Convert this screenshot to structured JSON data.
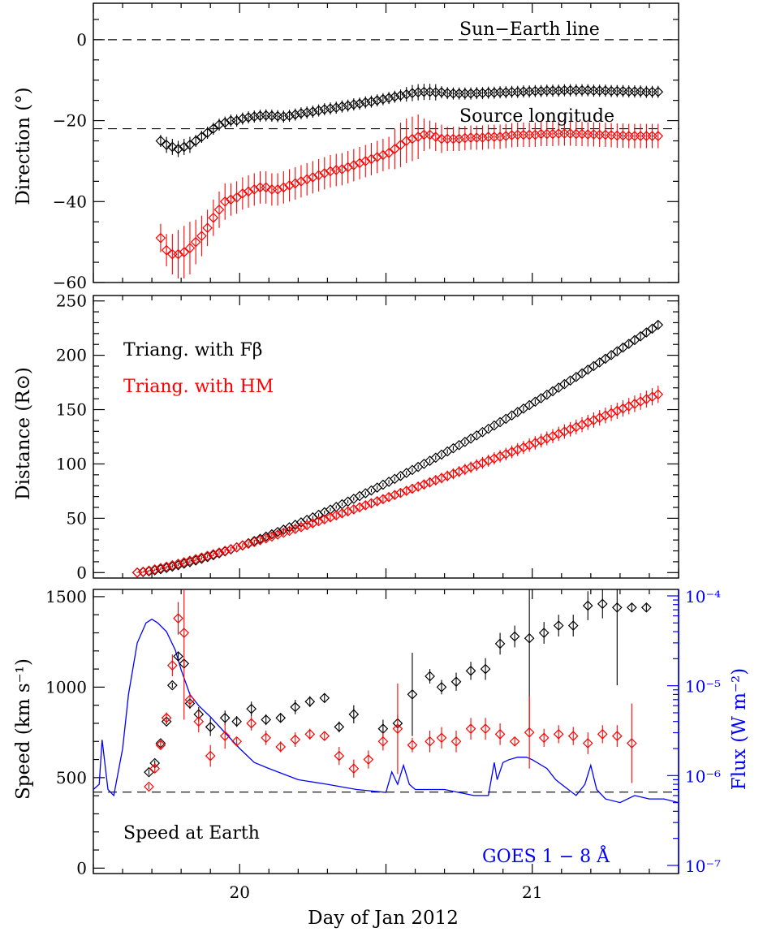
{
  "figure": {
    "x_axis_label": "Day of Jan 2012",
    "x_tick_labels": [
      "20",
      "21"
    ]
  },
  "chart_data": [
    {
      "type": "scatter",
      "panel": "direction",
      "ylabel": "Direction (°)",
      "ylim": [
        -60,
        9
      ],
      "y_ticks": [
        0,
        -20,
        -40,
        -60
      ],
      "xlim": [
        19.5,
        21.5
      ],
      "annotations": [
        "Sun−Earth line",
        "Source longitude"
      ],
      "reference_lines": [
        {
          "label": "Sun−Earth line",
          "y": 0
        },
        {
          "label": "Source longitude",
          "y": -22
        }
      ],
      "series": [
        {
          "color": "#000000",
          "x": [
            19.73,
            19.75,
            19.77,
            19.79,
            19.81,
            19.83,
            19.85,
            19.87,
            19.89,
            19.91,
            19.93,
            19.95,
            19.97,
            19.99,
            20.01,
            20.03,
            20.05,
            20.07,
            20.09,
            20.11,
            20.13,
            20.15,
            20.17,
            20.19,
            20.21,
            20.23,
            20.25,
            20.27,
            20.29,
            20.31,
            20.33,
            20.35,
            20.37,
            20.39,
            20.41,
            20.43,
            20.45,
            20.47,
            20.49,
            20.51,
            20.53,
            20.55,
            20.57,
            20.59,
            20.61,
            20.63,
            20.65,
            20.67,
            20.69,
            20.71,
            20.73,
            20.75,
            20.77,
            20.79,
            20.81,
            20.83,
            20.85,
            20.87,
            20.89,
            20.91,
            20.93,
            20.95,
            20.97,
            20.99,
            21.01,
            21.03,
            21.05,
            21.07,
            21.09,
            21.11,
            21.13,
            21.15,
            21.17,
            21.19,
            21.21,
            21.23,
            21.25,
            21.27,
            21.29,
            21.31,
            21.33,
            21.35,
            21.37,
            21.39,
            21.41,
            21.43
          ],
          "y": [
            -25,
            -26,
            -26.5,
            -27,
            -26.5,
            -26,
            -25,
            -24,
            -23,
            -22,
            -21,
            -20.5,
            -20,
            -20,
            -19.5,
            -19.2,
            -19,
            -18.8,
            -18.7,
            -18.8,
            -18.9,
            -19,
            -18.8,
            -18.5,
            -18.2,
            -18,
            -17.8,
            -17.5,
            -17.2,
            -17,
            -16.8,
            -16.5,
            -16.3,
            -16,
            -15.8,
            -15.5,
            -15.3,
            -15,
            -14.7,
            -14.4,
            -14.1,
            -13.8,
            -13.5,
            -13.2,
            -13,
            -12.9,
            -12.9,
            -13,
            -13,
            -13.2,
            -13.3,
            -13.3,
            -13.3,
            -13.3,
            -13.2,
            -13.2,
            -13.1,
            -13.1,
            -13,
            -13,
            -12.9,
            -12.9,
            -12.8,
            -12.8,
            -12.7,
            -12.7,
            -12.6,
            -12.6,
            -12.6,
            -12.5,
            -12.5,
            -12.5,
            -12.5,
            -12.5,
            -12.6,
            -12.6,
            -12.6,
            -12.7,
            -12.7,
            -12.7,
            -12.8,
            -12.8,
            -12.8,
            -12.9,
            -12.9,
            -12.9
          ],
          "err": [
            1.5,
            2,
            2,
            2,
            2,
            2,
            1.5,
            1.5,
            1.5,
            1.5,
            1.5,
            1.5,
            1.5,
            1.5,
            1.5,
            1.5,
            1.5,
            1.5,
            1.5,
            1.5,
            1.5,
            1.5,
            1.5,
            1.5,
            1.5,
            1.5,
            1.5,
            1.5,
            1.5,
            1.5,
            1.5,
            1.5,
            1.5,
            1.5,
            1.5,
            1.5,
            1.5,
            1.5,
            1.5,
            1.5,
            1.5,
            1.5,
            1.8,
            2,
            2,
            2,
            2,
            2,
            1.5,
            1.5,
            1.5,
            1.5,
            1.5,
            1.5,
            1.5,
            1.5,
            1.5,
            1.5,
            1.5,
            1.5,
            1.5,
            1.5,
            1.5,
            1.5,
            1.5,
            1.5,
            1.5,
            1.5,
            1.5,
            1.5,
            1.5,
            1.5,
            1.5,
            1.5,
            1.5,
            1.5,
            1.5,
            1.5,
            1.5,
            1.5,
            1.5,
            1.5,
            1.5,
            1.5,
            1.5,
            1.5
          ]
        },
        {
          "color": "#ff0000",
          "x": [
            19.73,
            19.75,
            19.77,
            19.79,
            19.81,
            19.83,
            19.85,
            19.87,
            19.89,
            19.91,
            19.93,
            19.95,
            19.97,
            19.99,
            20.01,
            20.03,
            20.05,
            20.07,
            20.09,
            20.11,
            20.13,
            20.15,
            20.17,
            20.19,
            20.21,
            20.23,
            20.25,
            20.27,
            20.29,
            20.31,
            20.33,
            20.35,
            20.37,
            20.39,
            20.41,
            20.43,
            20.45,
            20.47,
            20.49,
            20.51,
            20.53,
            20.55,
            20.57,
            20.59,
            20.61,
            20.63,
            20.65,
            20.67,
            20.69,
            20.71,
            20.73,
            20.75,
            20.77,
            20.79,
            20.81,
            20.83,
            20.85,
            20.87,
            20.89,
            20.91,
            20.93,
            20.95,
            20.97,
            20.99,
            21.01,
            21.03,
            21.05,
            21.07,
            21.09,
            21.11,
            21.13,
            21.15,
            21.17,
            21.19,
            21.21,
            21.23,
            21.25,
            21.27,
            21.29,
            21.31,
            21.33,
            21.35,
            21.37,
            21.39,
            21.41,
            21.43
          ],
          "y": [
            -49,
            -52,
            -53,
            -53,
            -52.5,
            -51.5,
            -50,
            -48.5,
            -46.5,
            -44,
            -42,
            -40,
            -39.5,
            -39,
            -38,
            -37.5,
            -37,
            -36.5,
            -36.5,
            -37,
            -37,
            -36.5,
            -36,
            -35.5,
            -35,
            -34.5,
            -34,
            -33.5,
            -33,
            -32.5,
            -32.2,
            -32,
            -31.5,
            -31,
            -30.5,
            -30,
            -29.5,
            -29,
            -28.5,
            -28,
            -27,
            -26,
            -25,
            -24.5,
            -24,
            -23.5,
            -23.5,
            -24,
            -24.5,
            -24.5,
            -24.5,
            -24.5,
            -24.3,
            -24.2,
            -24.2,
            -24.2,
            -24,
            -24,
            -24,
            -23.8,
            -23.6,
            -23.5,
            -23.5,
            -23.5,
            -23.5,
            -23.3,
            -23.3,
            -23.3,
            -23.2,
            -23.2,
            -23.2,
            -23.3,
            -23.3,
            -23.4,
            -23.4,
            -23.5,
            -23.5,
            -23.6,
            -23.7,
            -23.7,
            -23.8,
            -23.8,
            -23.8,
            -23.8,
            -23.8,
            -23.8
          ],
          "err": [
            3.5,
            4,
            5,
            6,
            6.5,
            6.5,
            5.5,
            5,
            4.5,
            4.5,
            4.5,
            4.5,
            4,
            4,
            4,
            4,
            4,
            4,
            4,
            4,
            4,
            4,
            4,
            4,
            4,
            4,
            4,
            4,
            4,
            4,
            4,
            4,
            4,
            4,
            4,
            4,
            4,
            4,
            4,
            4,
            5,
            5.5,
            5.5,
            5.5,
            5.5,
            4,
            3.5,
            3.5,
            3.5,
            3,
            3,
            3,
            3,
            3,
            3,
            3,
            3,
            3,
            3,
            3,
            3,
            3,
            3,
            3,
            3,
            3,
            3,
            3,
            3,
            3,
            3,
            3,
            3,
            3,
            3,
            3,
            3,
            3,
            3,
            3,
            3,
            3,
            3,
            3,
            3,
            3
          ]
        }
      ]
    },
    {
      "type": "scatter",
      "panel": "distance",
      "ylabel": "Distance (R⊙)",
      "ylim": [
        -5,
        255
      ],
      "y_ticks": [
        0,
        50,
        100,
        150,
        200,
        250
      ],
      "xlim": [
        19.5,
        21.5
      ],
      "legend": [
        "Triang. with Fβ",
        "Triang. with HM"
      ],
      "series": [
        {
          "name": "Triang. with Fβ",
          "color": "#000000",
          "x_start": 19.65,
          "x_step": 0.02,
          "n": 90,
          "y_start": 0,
          "y_end": 228,
          "shape_exponent": 1.38,
          "err_start": 0.5,
          "err_end": 3
        },
        {
          "name": "Triang. with HM",
          "color": "#ff0000",
          "x_start": 19.65,
          "x_step": 0.02,
          "n": 90,
          "y_start": 0,
          "y_end": 164,
          "shape_exponent": 1.18,
          "err_start": 0.5,
          "err_end": 8
        }
      ]
    },
    {
      "type": "scatter",
      "panel": "speed",
      "ylabel": "Speed (km s⁻¹)",
      "ylim": [
        -30,
        1540
      ],
      "y_ticks": [
        0,
        500,
        1000,
        1500
      ],
      "xlim": [
        19.5,
        21.5
      ],
      "reference_lines": [
        {
          "label": "Speed at Earth",
          "y": 420
        }
      ],
      "annotations": [
        "Speed at Earth"
      ],
      "series": [
        {
          "color": "#000000",
          "x": [
            19.69,
            19.71,
            19.73,
            19.75,
            19.77,
            19.79,
            19.81,
            19.83,
            19.86,
            19.9,
            19.95,
            19.99,
            20.04,
            20.09,
            20.14,
            20.19,
            20.24,
            20.29,
            20.34,
            20.39,
            20.49,
            20.54,
            20.59,
            20.65,
            20.69,
            20.74,
            20.79,
            20.84,
            20.89,
            20.94,
            20.99,
            21.04,
            21.09,
            21.14,
            21.19,
            21.24,
            21.29,
            21.34,
            21.39
          ],
          "y": [
            530,
            580,
            690,
            810,
            1010,
            1170,
            1130,
            910,
            850,
            780,
            830,
            810,
            880,
            820,
            830,
            890,
            920,
            940,
            780,
            850,
            770,
            800,
            960,
            1060,
            1000,
            1030,
            1090,
            1100,
            1240,
            1280,
            1270,
            1300,
            1340,
            1340,
            1450,
            1460,
            1440,
            1440,
            1440
          ],
          "err": [
            15,
            15,
            15,
            15,
            15,
            20,
            20,
            30,
            40,
            50,
            40,
            30,
            40,
            30,
            25,
            40,
            30,
            25,
            30,
            50,
            50,
            50,
            230,
            40,
            40,
            50,
            50,
            60,
            60,
            60,
            520,
            60,
            60,
            60,
            80,
            80,
            430,
            20,
            20
          ]
        },
        {
          "color": "#ff0000",
          "x": [
            19.69,
            19.71,
            19.73,
            19.75,
            19.77,
            19.79,
            19.81,
            19.83,
            19.86,
            19.9,
            19.95,
            19.99,
            20.04,
            20.09,
            20.14,
            20.19,
            20.24,
            20.29,
            20.34,
            20.39,
            20.44,
            20.49,
            20.54,
            20.59,
            20.65,
            20.69,
            20.74,
            20.79,
            20.84,
            20.89,
            20.94,
            20.99,
            21.04,
            21.09,
            21.14,
            21.19,
            21.24,
            21.29,
            21.34
          ],
          "y": [
            450,
            550,
            680,
            830,
            1120,
            1380,
            1300,
            930,
            810,
            620,
            730,
            700,
            800,
            720,
            670,
            710,
            740,
            730,
            620,
            550,
            600,
            700,
            770,
            680,
            700,
            720,
            700,
            770,
            770,
            740,
            700,
            750,
            720,
            740,
            730,
            690,
            740,
            730,
            690
          ],
          "err": [
            15,
            20,
            20,
            30,
            60,
            90,
            480,
            40,
            60,
            60,
            70,
            20,
            40,
            40,
            30,
            40,
            30,
            20,
            50,
            50,
            50,
            50,
            250,
            40,
            60,
            60,
            60,
            60,
            60,
            60,
            20,
            200,
            50,
            50,
            50,
            60,
            50,
            60,
            220
          ]
        }
      ]
    },
    {
      "type": "line",
      "panel": "speed-goes",
      "name": "GOES 1 − 8 Å",
      "color": "#0000ff",
      "ylabel": "Flux (W m⁻²)",
      "y_scale": "log",
      "ylim": [
        1e-07,
        0.0001
      ],
      "y_tick_labels": [
        "10⁻⁷",
        "10⁻⁶",
        "10⁻⁵",
        "10⁻⁴"
      ],
      "x": [
        19.5,
        19.52,
        19.53,
        19.55,
        19.57,
        19.6,
        19.62,
        19.65,
        19.68,
        19.7,
        19.72,
        19.75,
        19.78,
        19.8,
        19.83,
        19.86,
        19.9,
        19.95,
        20.0,
        20.05,
        20.1,
        20.2,
        20.3,
        20.4,
        20.5,
        20.52,
        20.54,
        20.56,
        20.58,
        20.6,
        20.65,
        20.7,
        20.8,
        20.85,
        20.87,
        20.88,
        20.9,
        20.92,
        20.95,
        20.98,
        21.0,
        21.05,
        21.08,
        21.1,
        21.15,
        21.18,
        21.2,
        21.22,
        21.25,
        21.3,
        21.35,
        21.4,
        21.45,
        21.5
      ],
      "y": [
        7e-07,
        8e-07,
        2.5e-06,
        7e-07,
        6e-07,
        2e-06,
        8e-06,
        3e-05,
        5e-05,
        5.5e-05,
        5e-05,
        4e-05,
        2.5e-05,
        1.5e-05,
        8e-06,
        6e-06,
        4.5e-06,
        3e-06,
        2e-06,
        1.4e-06,
        1.2e-06,
        9e-07,
        8e-07,
        7e-07,
        6.5e-07,
        1.1e-06,
        8e-07,
        1.3e-06,
        8e-07,
        7e-07,
        7e-07,
        7e-07,
        6e-07,
        6e-07,
        1.4e-06,
        9e-07,
        1.4e-06,
        1.5e-06,
        1.6e-06,
        1.6e-06,
        1.5e-06,
        1.2e-06,
        9e-07,
        8e-07,
        6e-07,
        8e-07,
        1.3e-06,
        7e-07,
        5.5e-07,
        5e-07,
        6e-07,
        5.5e-07,
        5.5e-07,
        5e-07
      ]
    }
  ],
  "annotations": {
    "sun_earth": "Sun−Earth line",
    "source_longitude": "Source longitude",
    "legend_fbeta": "Triang. with Fβ",
    "legend_hm": "Triang. with HM",
    "speed_at_earth": "Speed at Earth",
    "goes_label": "GOES 1 − 8 Å"
  },
  "axes": {
    "direction_ylabel": "Direction (°)",
    "distance_ylabel": "Distance (R⊙)",
    "speed_ylabel": "Speed (km s⁻¹)",
    "flux_ylabel": "Flux (W m⁻²)"
  }
}
